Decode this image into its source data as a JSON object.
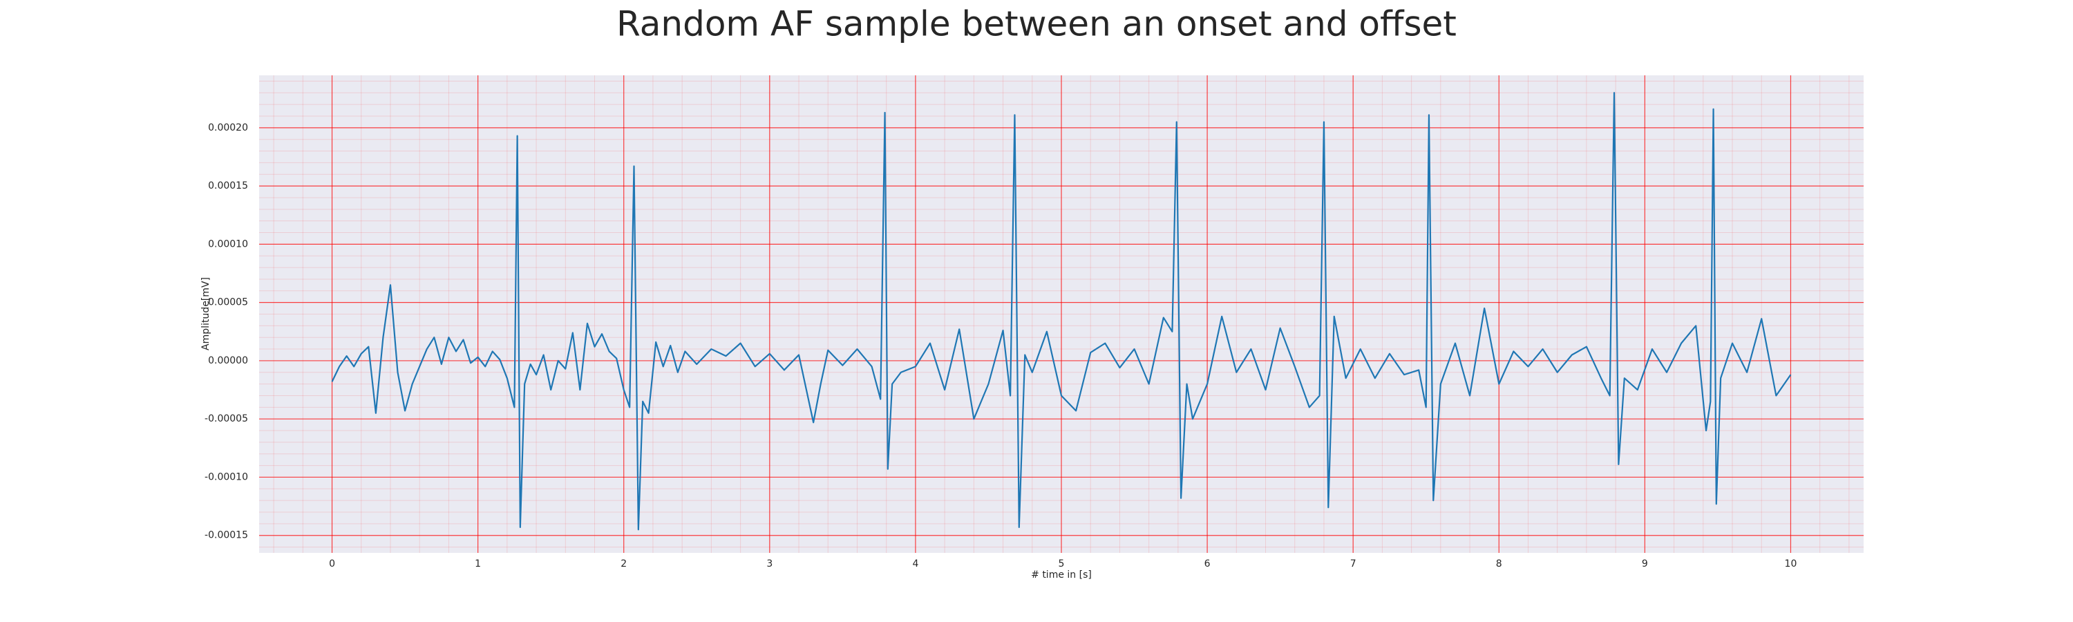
{
  "chart_data": {
    "type": "line",
    "title": "Random AF sample between an onset and offset",
    "xlabel": "# time in [s]",
    "ylabel": "Amplitude[mV]",
    "x": [
      0,
      0.05,
      0.1,
      0.15,
      0.2,
      0.25,
      0.3,
      0.35,
      0.4,
      0.45,
      0.5,
      0.55,
      0.6,
      0.65,
      0.7,
      0.75,
      0.8,
      0.85,
      0.9,
      0.95,
      1.0,
      1.05,
      1.1,
      1.15,
      1.2,
      1.25,
      1.27,
      1.29,
      1.32,
      1.36,
      1.4,
      1.45,
      1.5,
      1.55,
      1.6,
      1.65,
      1.7,
      1.75,
      1.8,
      1.85,
      1.9,
      1.95,
      2.0,
      2.04,
      2.07,
      2.1,
      2.13,
      2.17,
      2.22,
      2.27,
      2.32,
      2.37,
      2.42,
      2.5,
      2.6,
      2.7,
      2.8,
      2.9,
      3.0,
      3.1,
      3.2,
      3.3,
      3.35,
      3.4,
      3.5,
      3.6,
      3.7,
      3.76,
      3.79,
      3.81,
      3.84,
      3.9,
      4.0,
      4.1,
      4.2,
      4.3,
      4.4,
      4.5,
      4.6,
      4.65,
      4.68,
      4.71,
      4.75,
      4.8,
      4.9,
      5.0,
      5.1,
      5.2,
      5.3,
      5.4,
      5.5,
      5.6,
      5.7,
      5.76,
      5.79,
      5.82,
      5.86,
      5.9,
      6.0,
      6.1,
      6.2,
      6.3,
      6.4,
      6.5,
      6.6,
      6.7,
      6.77,
      6.8,
      6.83,
      6.87,
      6.95,
      7.05,
      7.15,
      7.25,
      7.35,
      7.45,
      7.5,
      7.52,
      7.55,
      7.6,
      7.7,
      7.8,
      7.9,
      8.0,
      8.1,
      8.2,
      8.3,
      8.4,
      8.5,
      8.6,
      8.7,
      8.76,
      8.79,
      8.82,
      8.86,
      8.95,
      9.05,
      9.15,
      9.25,
      9.35,
      9.42,
      9.45,
      9.47,
      9.49,
      9.52,
      9.6,
      9.7,
      9.8,
      9.9,
      10.0
    ],
    "series": [
      {
        "color": "#1f77b4",
        "values": [
          -1.8e-05,
          -5e-06,
          4e-06,
          -5e-06,
          6e-06,
          1.2e-05,
          -4.5e-05,
          2e-05,
          6.5e-05,
          -1e-05,
          -4.3e-05,
          -2e-05,
          -5e-06,
          1e-05,
          2e-05,
          -3e-06,
          2e-05,
          8e-06,
          1.8e-05,
          -2e-06,
          3e-06,
          -5e-06,
          8e-06,
          1e-06,
          -1.5e-05,
          -4e-05,
          0.000193,
          -0.000143,
          -2e-05,
          -3e-06,
          -1.2e-05,
          5e-06,
          -2.5e-05,
          0,
          -7e-06,
          2.4e-05,
          -2.5e-05,
          3.2e-05,
          1.2e-05,
          2.3e-05,
          8e-06,
          2e-06,
          -2.5e-05,
          -4e-05,
          0.000167,
          -0.000145,
          -3.5e-05,
          -4.5e-05,
          1.6e-05,
          -5e-06,
          1.3e-05,
          -1e-05,
          8e-06,
          -3e-06,
          1e-05,
          4e-06,
          1.5e-05,
          -5e-06,
          6e-06,
          -8e-06,
          5e-06,
          -5.3e-05,
          -2e-05,
          9e-06,
          -4e-06,
          1e-05,
          -5e-06,
          -3.3e-05,
          0.000213,
          -9.3e-05,
          -2e-05,
          -1e-05,
          -5e-06,
          1.5e-05,
          -2.5e-05,
          2.7e-05,
          -5e-05,
          -2e-05,
          2.6e-05,
          -3e-05,
          0.000211,
          -0.000143,
          5e-06,
          -1e-05,
          2.5e-05,
          -3e-05,
          -4.3e-05,
          7e-06,
          1.5e-05,
          -6e-06,
          1e-05,
          -2e-05,
          3.7e-05,
          2.5e-05,
          0.000205,
          -0.000118,
          -2e-05,
          -5e-05,
          -2e-05,
          3.8e-05,
          -1e-05,
          1e-05,
          -2.5e-05,
          2.8e-05,
          -5e-06,
          -4e-05,
          -3e-05,
          0.000205,
          -0.000126,
          3.8e-05,
          -1.5e-05,
          1e-05,
          -1.5e-05,
          6e-06,
          -1.2e-05,
          -8e-06,
          -4e-05,
          0.000211,
          -0.00012,
          -2e-05,
          1.5e-05,
          -3e-05,
          4.5e-05,
          -2e-05,
          8e-06,
          -5e-06,
          1e-05,
          -1e-05,
          5e-06,
          1.2e-05,
          -1.5e-05,
          -3e-05,
          0.00023,
          -8.9e-05,
          -1.5e-05,
          -2.5e-05,
          1e-05,
          -1e-05,
          1.5e-05,
          3e-05,
          -6e-05,
          -3.5e-05,
          0.000216,
          -0.000123,
          -1.5e-05,
          1.5e-05,
          -1e-05,
          3.6e-05,
          -3e-05,
          -1.2e-05
        ]
      }
    ],
    "xlim": [
      -0.5,
      10.5
    ],
    "ylim": [
      -0.000165,
      0.000245
    ],
    "xticks": [
      0,
      1,
      2,
      3,
      4,
      5,
      6,
      7,
      8,
      9,
      10
    ],
    "yticks": [
      {
        "value": -0.00015,
        "label": "-0.00015"
      },
      {
        "value": -0.0001,
        "label": "-0.00010"
      },
      {
        "value": -5e-05,
        "label": "-0.00005"
      },
      {
        "value": 0,
        "label": "0.00000"
      },
      {
        "value": 5e-05,
        "label": "0.00005"
      },
      {
        "value": 0.0001,
        "label": "0.00010"
      },
      {
        "value": 0.00015,
        "label": "0.00015"
      },
      {
        "value": 0.0002,
        "label": "0.00020"
      }
    ],
    "grid": true,
    "minor_grid": true,
    "grid_color": "#ff0000",
    "background": "#eaeaf2"
  }
}
